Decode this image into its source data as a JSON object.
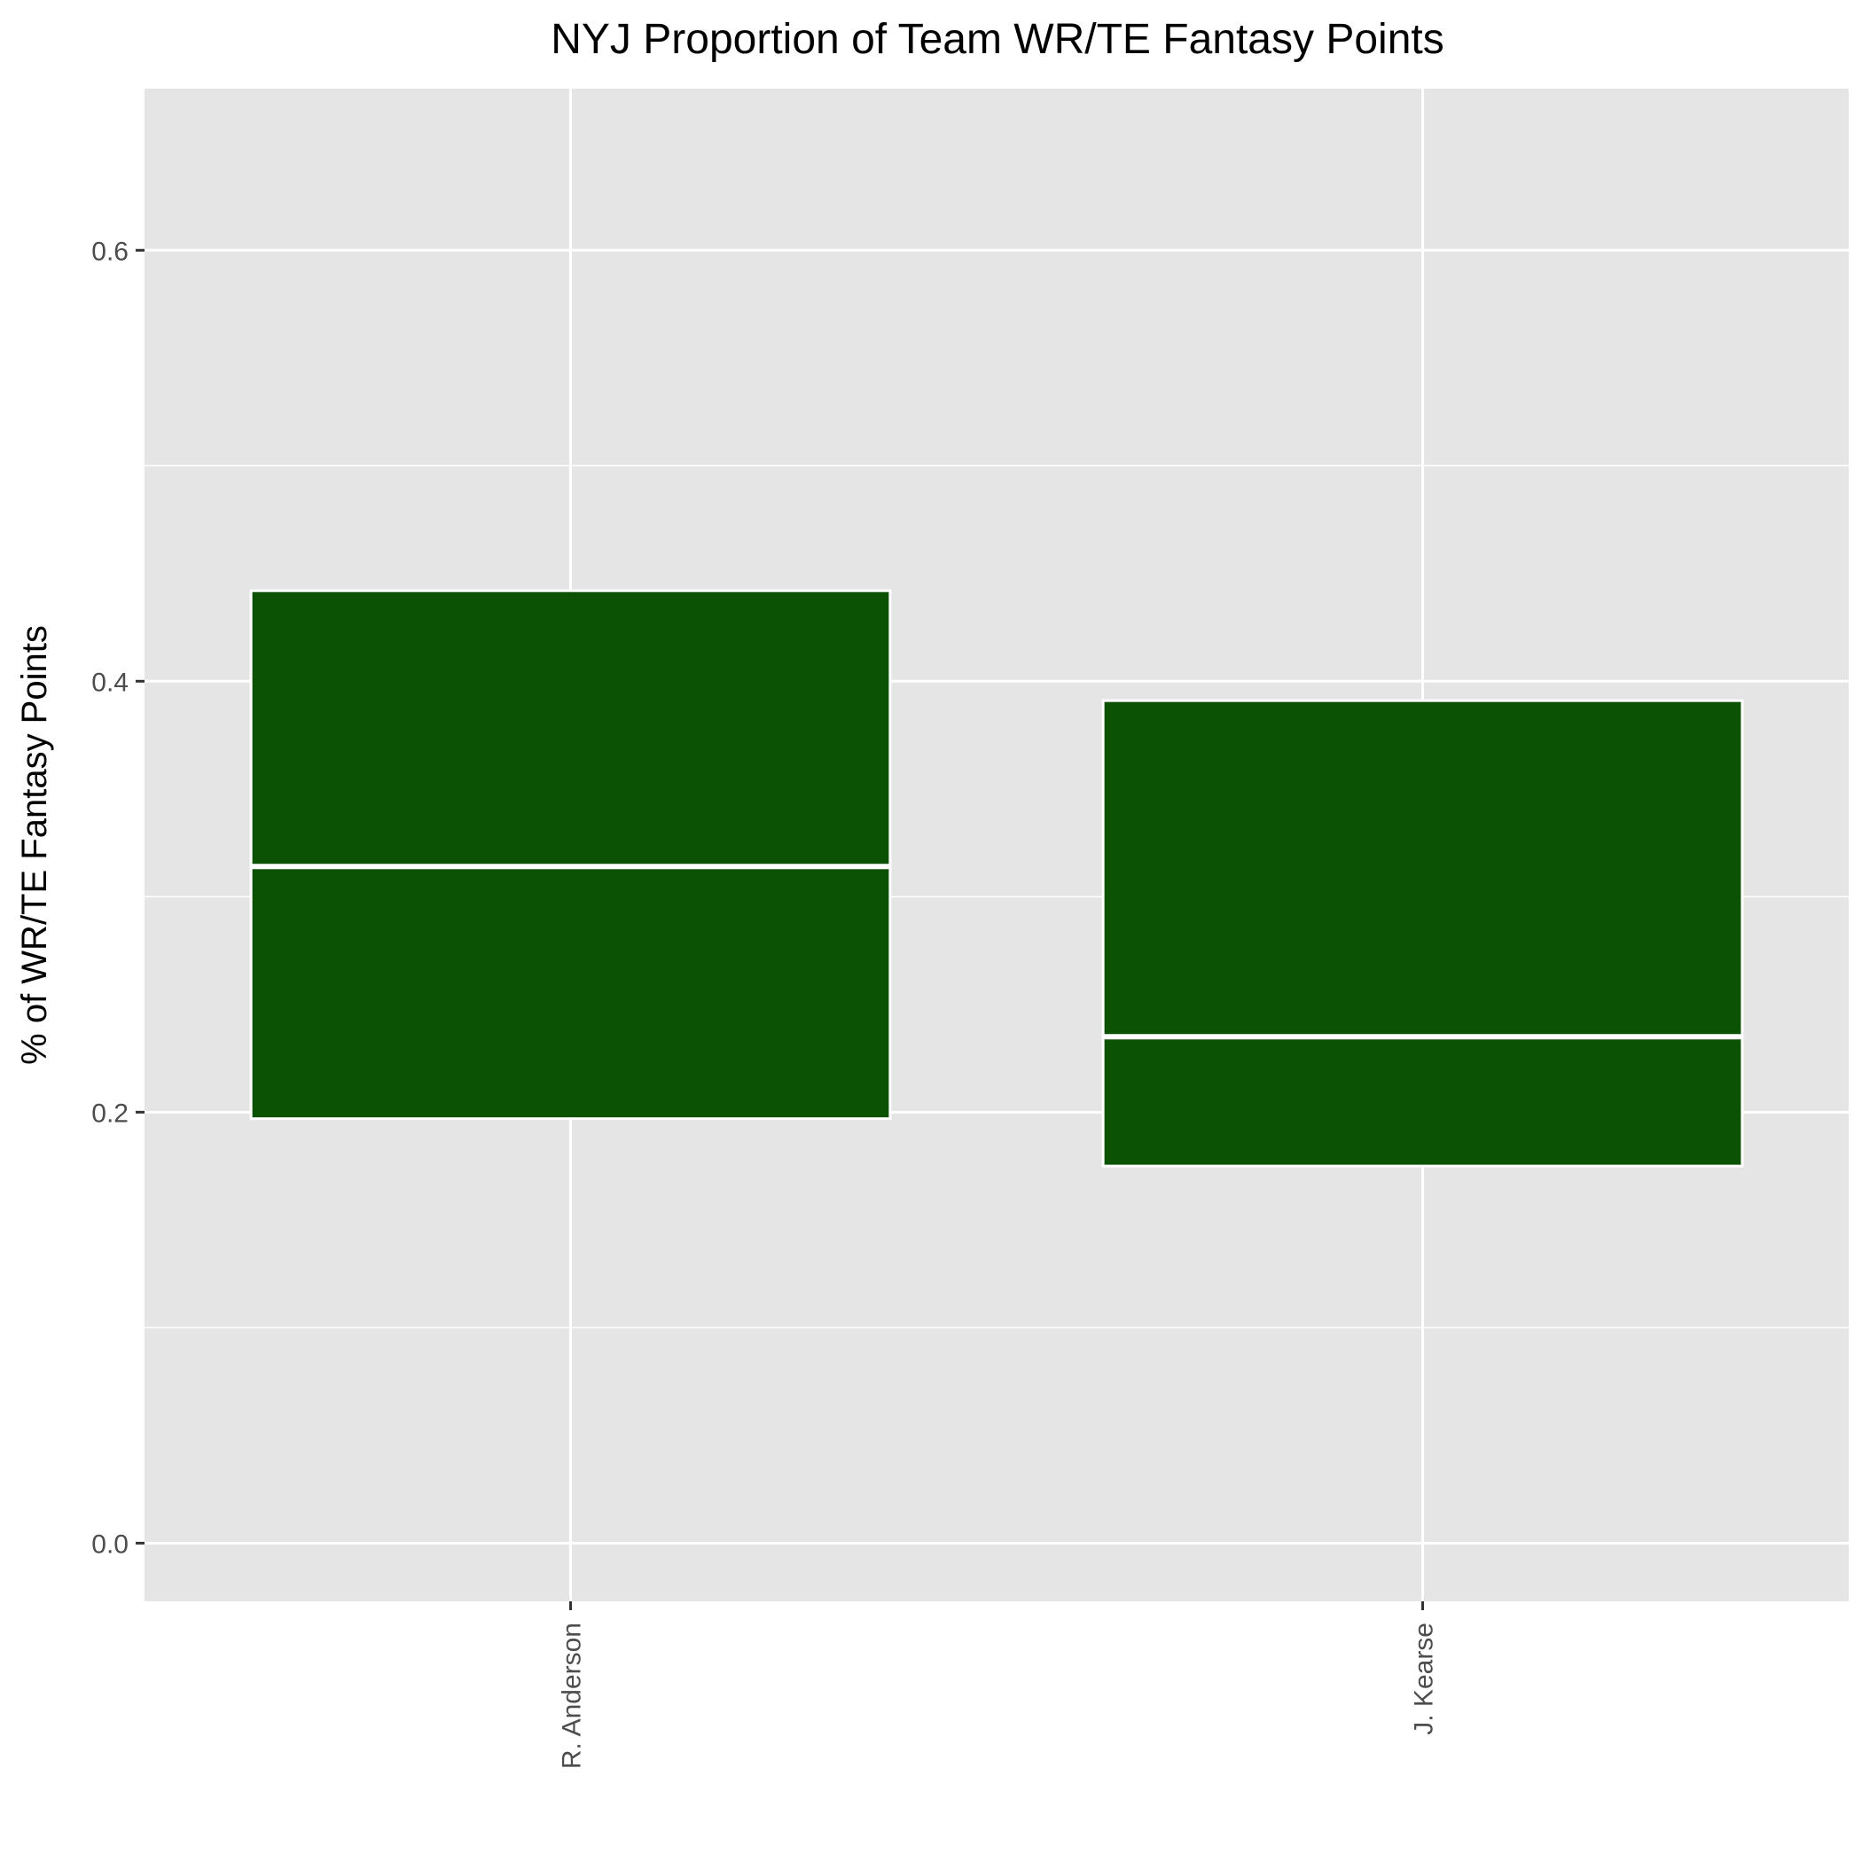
{
  "chart_data": {
    "type": "boxplot",
    "title": "NYJ Proportion of Team WR/TE Fantasy Points",
    "xlabel": "",
    "ylabel": "% of WR/TE Fantasy Points",
    "categories": [
      "R. Anderson",
      "J. Kearse"
    ],
    "boxes": [
      {
        "category": "R. Anderson",
        "q1": 0.197,
        "median": 0.314,
        "q3": 0.442
      },
      {
        "category": "J. Kearse",
        "q1": 0.175,
        "median": 0.235,
        "q3": 0.391
      }
    ],
    "ylim": [
      -0.027,
      0.675
    ],
    "y_ticks": [
      {
        "value": 0.0,
        "label": "0.0"
      },
      {
        "value": 0.2,
        "label": "0.2"
      },
      {
        "value": 0.4,
        "label": "0.4"
      },
      {
        "value": 0.6,
        "label": "0.6"
      }
    ],
    "y_minor_ticks": [
      0.1,
      0.3,
      0.5
    ],
    "grid": true,
    "colors": {
      "box_fill": "#0c5204",
      "box_outline": "#ffffff",
      "panel_background": "#e5e5e5",
      "grid": "#ffffff"
    }
  }
}
